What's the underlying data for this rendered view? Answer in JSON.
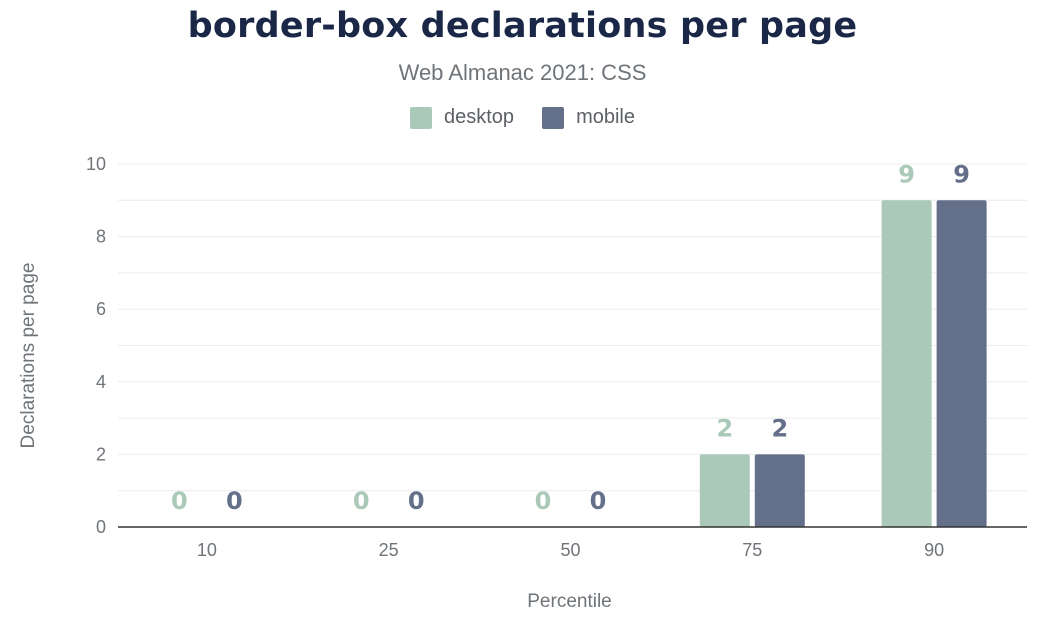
{
  "chart_data": {
    "type": "bar",
    "title": "border-box declarations per page",
    "subtitle": "Web Almanac 2021: CSS",
    "xlabel": "Percentile",
    "ylabel": "Declarations per page",
    "categories": [
      "10",
      "25",
      "50",
      "75",
      "90"
    ],
    "series": [
      {
        "name": "desktop",
        "color": "#aac9b8",
        "values": [
          0,
          0,
          0,
          2,
          9
        ]
      },
      {
        "name": "mobile",
        "color": "#64708a",
        "values": [
          0,
          0,
          0,
          2,
          9
        ]
      }
    ],
    "ylim": [
      0,
      10
    ],
    "yticks": [
      0,
      2,
      4,
      6,
      8,
      10
    ],
    "grid": true,
    "legend_position": "top-center"
  }
}
